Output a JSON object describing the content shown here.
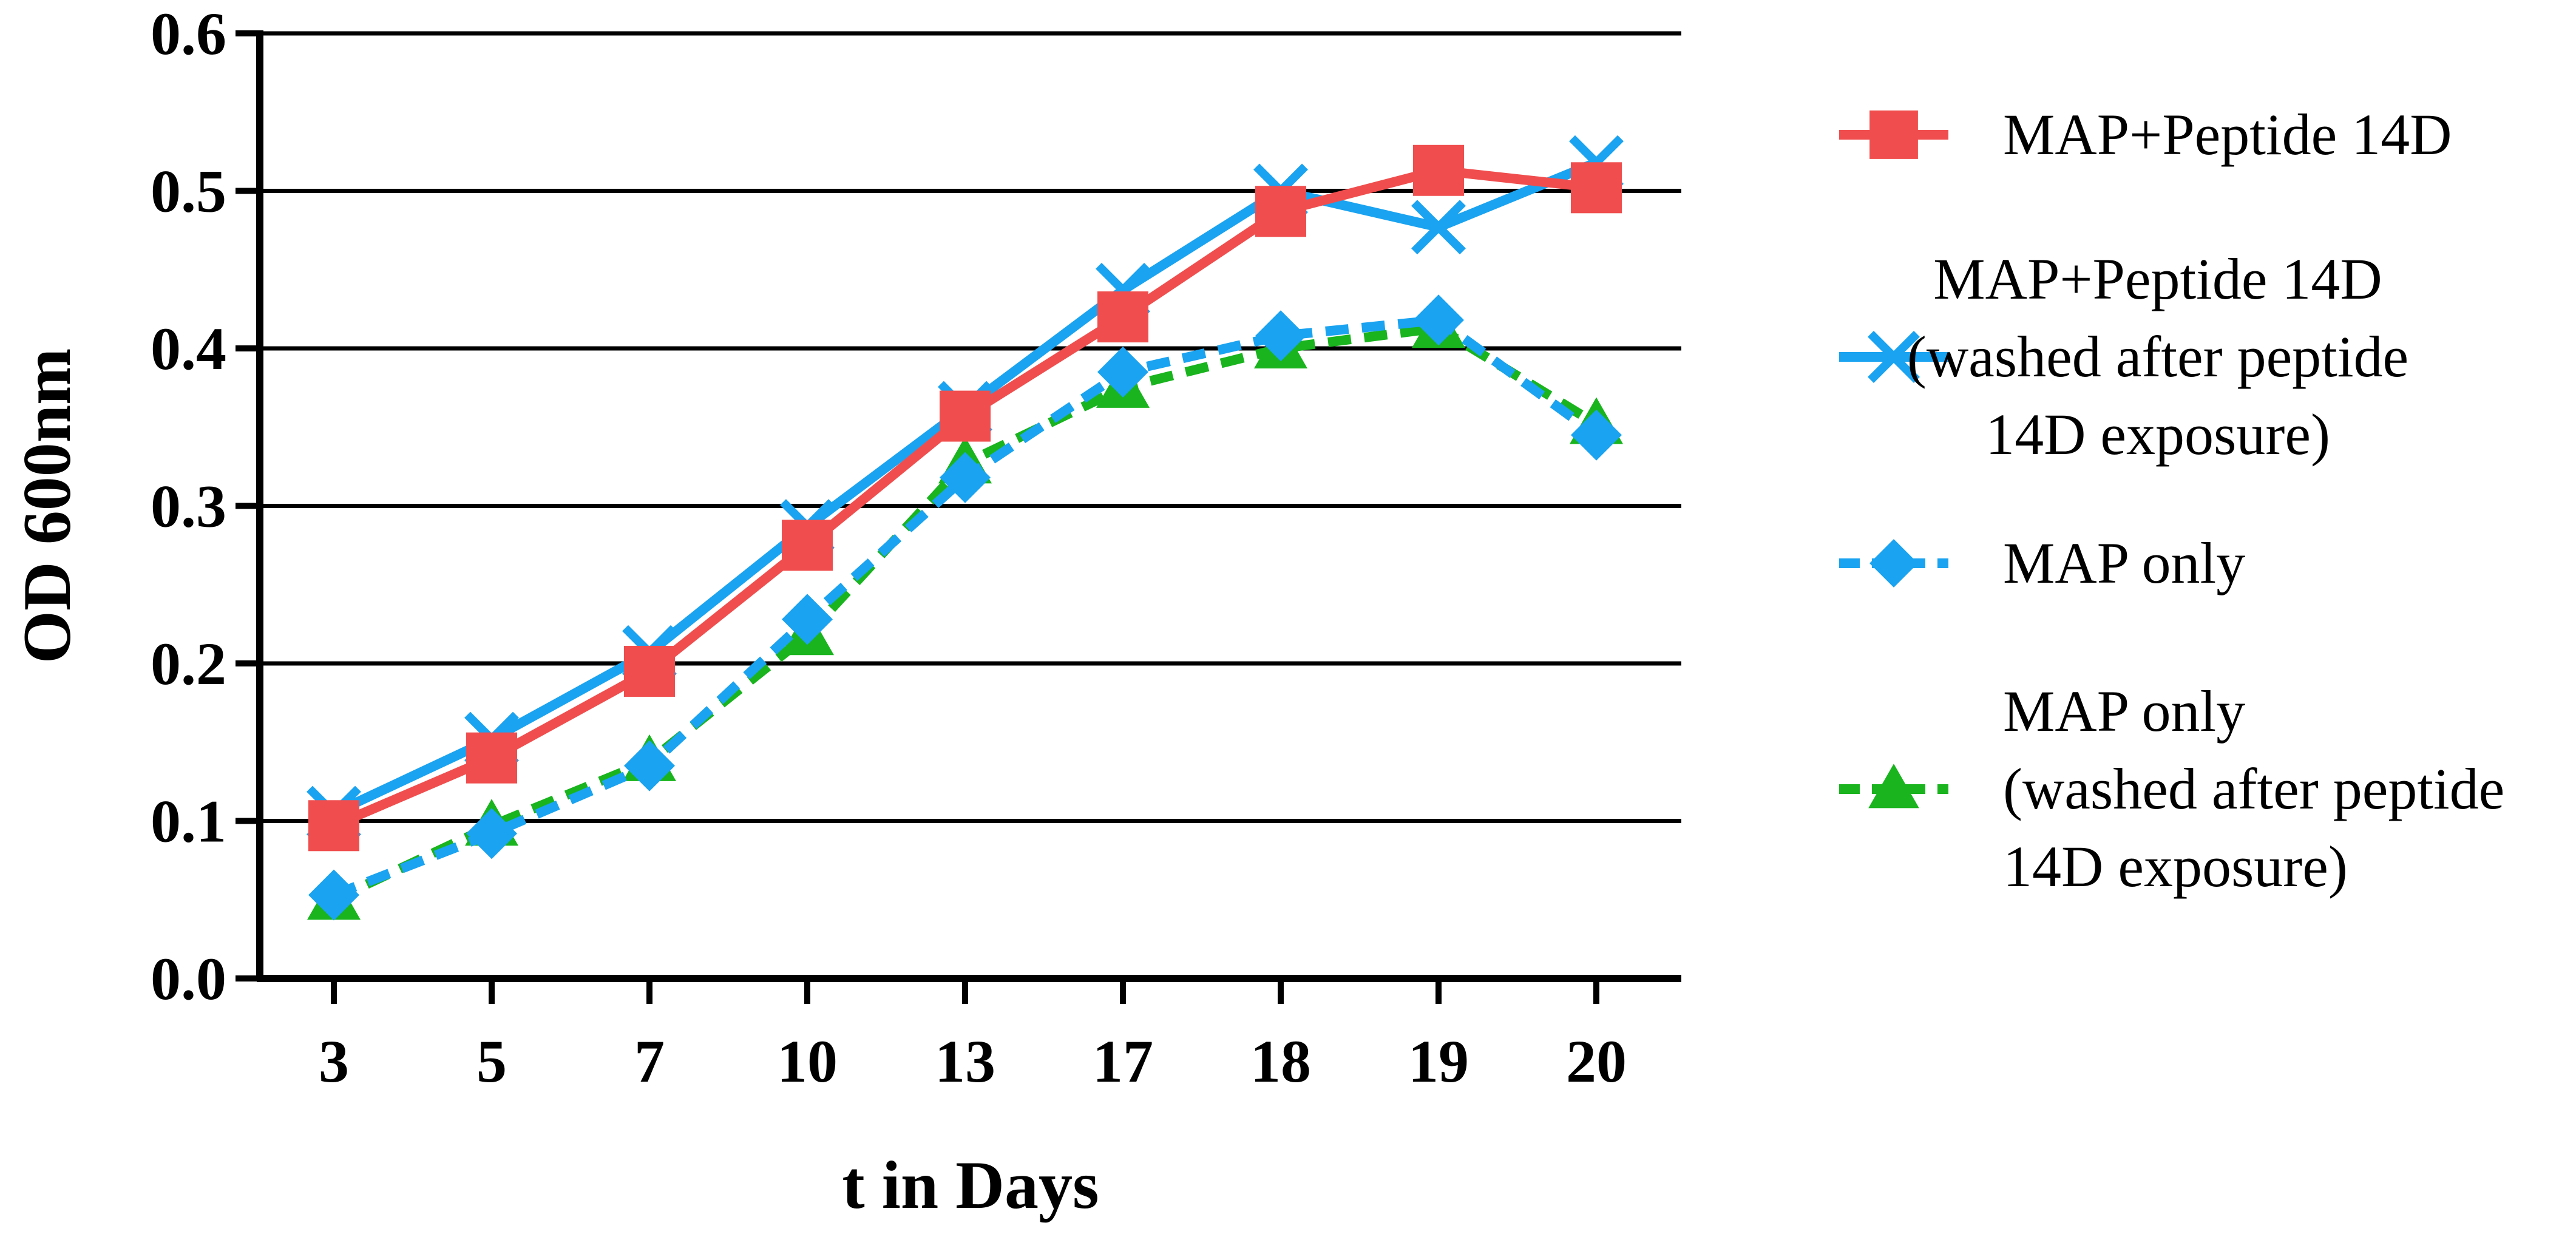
{
  "chart_data": {
    "type": "line",
    "title": "",
    "xlabel": "t in Days",
    "ylabel": "OD 600nm",
    "ylim": [
      0,
      0.6
    ],
    "yticks": [
      "0.0",
      "0.1",
      "0.2",
      "0.3",
      "0.4",
      "0.5",
      "0.6"
    ],
    "categories": [
      "3",
      "5",
      "7",
      "10",
      "13",
      "17",
      "18",
      "19",
      "20"
    ],
    "grid": "horizontal",
    "legend_position": "right",
    "series": [
      {
        "name": "MAP+Peptide 14D",
        "legend_lines": [
          "MAP+Peptide 14D"
        ],
        "color": "#F04E4E",
        "marker": "square",
        "dash": "solid",
        "values": [
          0.097,
          0.14,
          0.195,
          0.275,
          0.357,
          0.42,
          0.487,
          0.513,
          0.502
        ]
      },
      {
        "name": "MAP+Peptide 14D (washed after peptide 14D exposure)",
        "legend_lines": [
          "MAP+Peptide 14D",
          "(washed after peptide",
          "14D exposure)"
        ],
        "color": "#1AA3F0",
        "marker": "x",
        "dash": "solid",
        "values": [
          0.105,
          0.152,
          0.207,
          0.287,
          0.362,
          0.437,
          0.5,
          0.477,
          0.518
        ]
      },
      {
        "name": "MAP only",
        "legend_lines": [
          "MAP only"
        ],
        "color": "#1AA3F0",
        "marker": "diamond",
        "dash": "dashed",
        "values": [
          0.053,
          0.092,
          0.135,
          0.228,
          0.318,
          0.385,
          0.408,
          0.418,
          0.345
        ]
      },
      {
        "name": "MAP only (washed after peptide 14D exposure)",
        "legend_lines": [
          "MAP only",
          "(washed after peptide",
          "14D exposure)"
        ],
        "color": "#19B41E",
        "marker": "triangle",
        "dash": "dashed",
        "values": [
          0.05,
          0.097,
          0.138,
          0.218,
          0.327,
          0.375,
          0.4,
          0.413,
          0.352
        ]
      }
    ]
  }
}
